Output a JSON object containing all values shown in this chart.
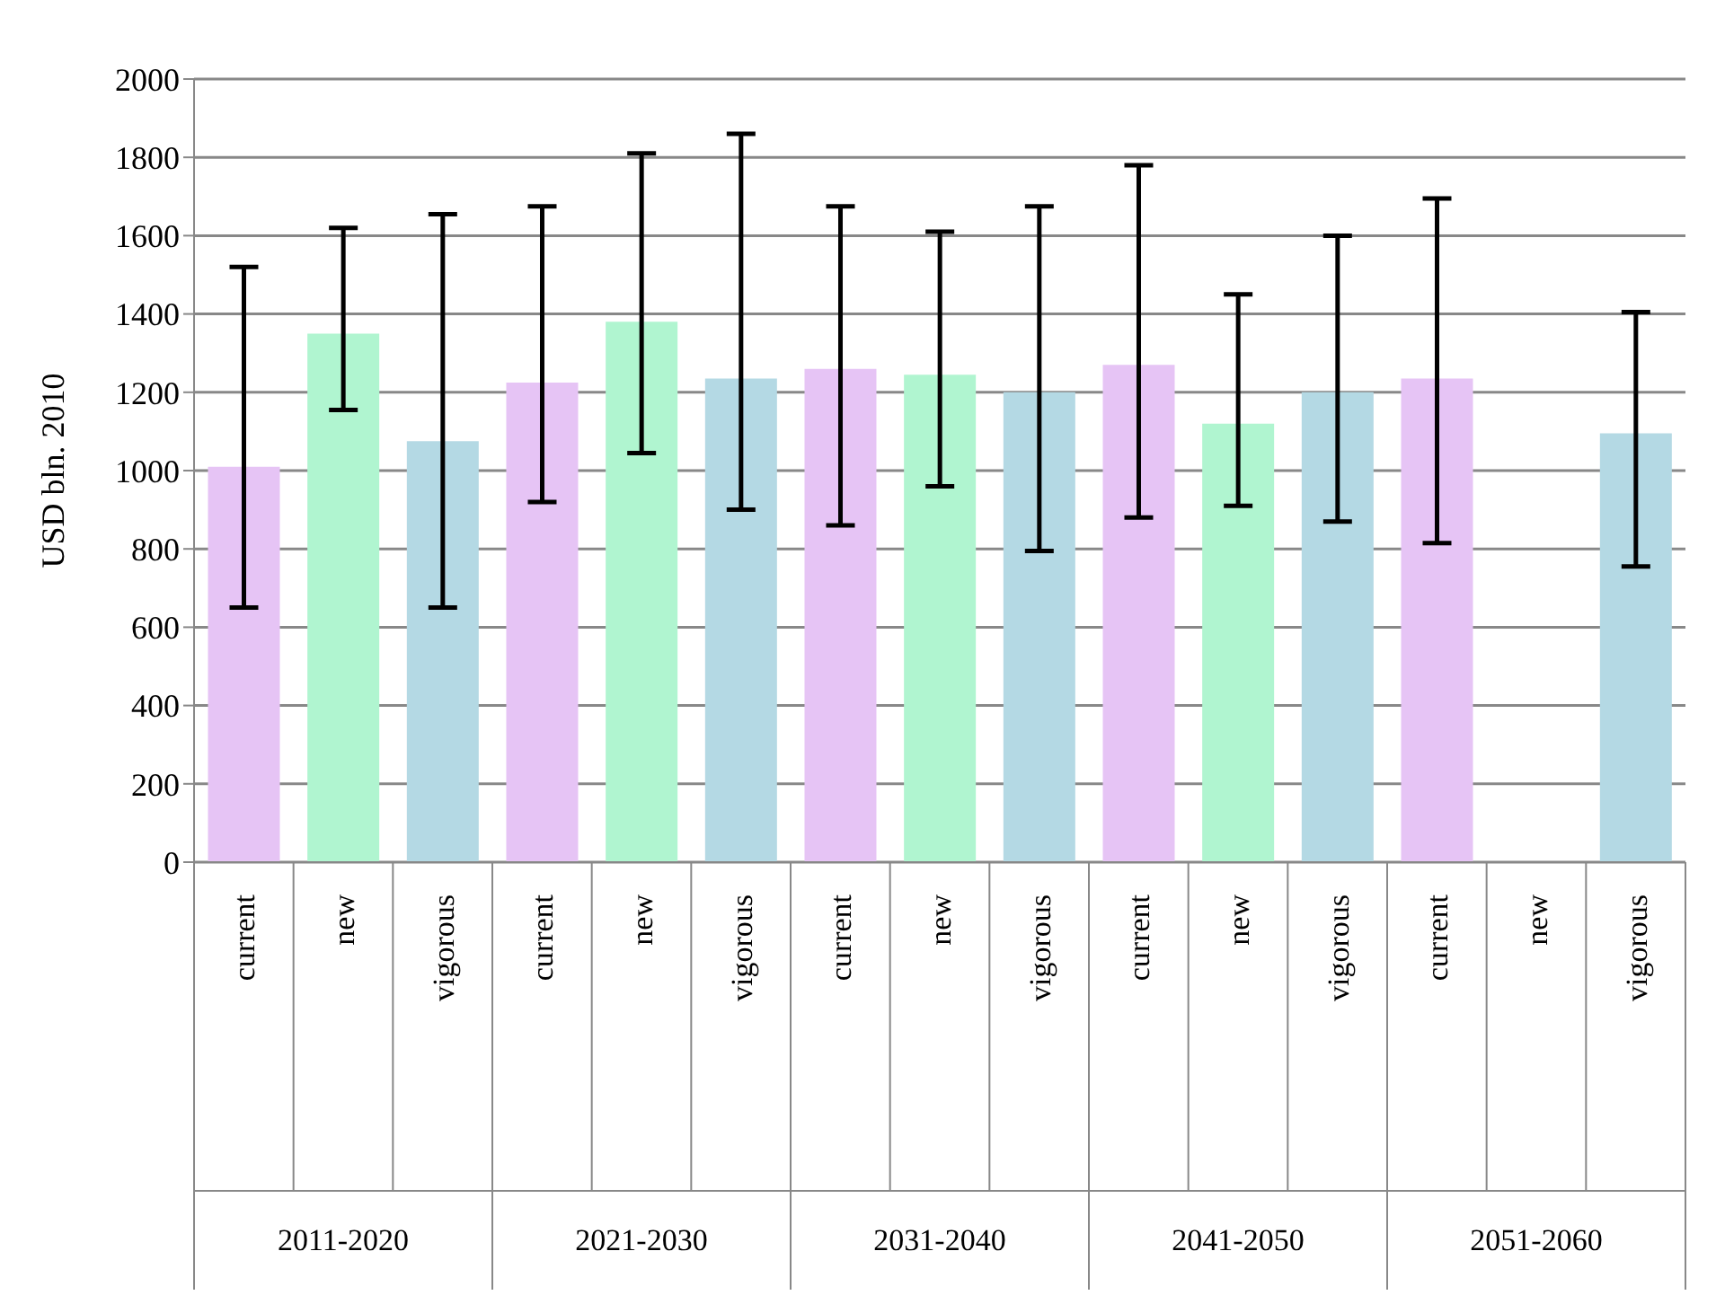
{
  "chart_data": {
    "type": "bar",
    "ylabel": "USD bln. 2010",
    "categories": [
      "current",
      "new",
      "vigorous",
      "current",
      "new",
      "vigorous",
      "current",
      "new",
      "vigorous",
      "current",
      "new",
      "vigorous",
      "current",
      "new",
      "vigorous"
    ],
    "values": [
      1010,
      1350,
      1075,
      1225,
      1380,
      1235,
      1260,
      1245,
      1200,
      1270,
      1120,
      1200,
      1235,
      null,
      1095
    ],
    "errors": [
      [
        650,
        1520
      ],
      [
        1155,
        1620
      ],
      [
        650,
        1655
      ],
      [
        920,
        1675
      ],
      [
        1045,
        1810
      ],
      [
        900,
        1860
      ],
      [
        860,
        1675
      ],
      [
        960,
        1610
      ],
      [
        795,
        1675
      ],
      [
        880,
        1780
      ],
      [
        910,
        1450
      ],
      [
        870,
        1600
      ],
      [
        815,
        1695
      ],
      null,
      [
        755,
        1405
      ]
    ],
    "colors": [
      "#e6c4f5",
      "#b0f5d0",
      "#b4d9e4",
      "#e6c4f5",
      "#b0f5d0",
      "#b4d9e4",
      "#e6c4f5",
      "#b0f5d0",
      "#b4d9e4",
      "#e6c4f5",
      "#b0f5d0",
      "#b4d9e4",
      "#e6c4f5",
      "#b0f5d0",
      "#b4d9e4"
    ],
    "ylim": [
      0,
      2000
    ],
    "yticks": [
      0,
      200,
      400,
      600,
      800,
      1000,
      1200,
      1400,
      1600,
      1800,
      2000
    ],
    "grid": "y",
    "legend": false,
    "annotations": [
      "2011-2020",
      "2021-2030",
      "2031-2040",
      "2041-2050",
      "2051-2060"
    ]
  }
}
